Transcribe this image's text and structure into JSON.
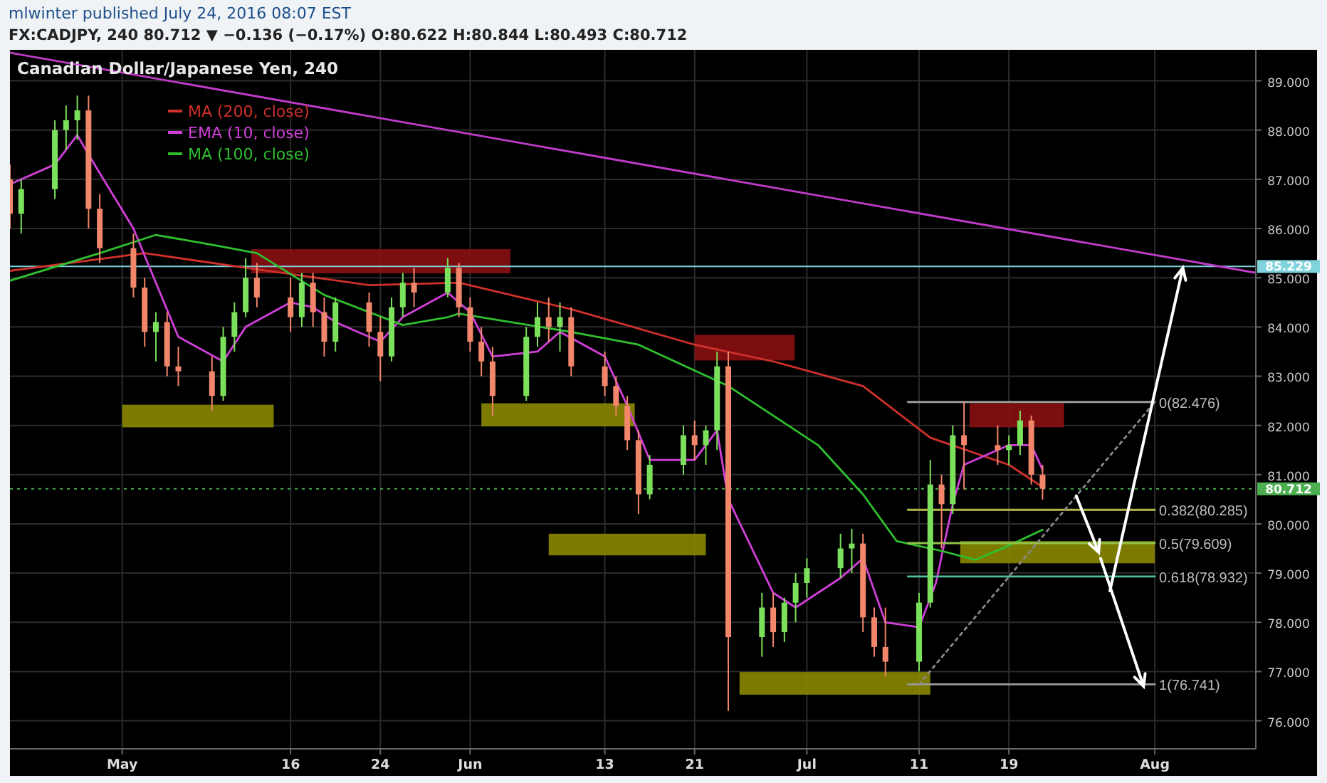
{
  "chart_data": {
    "type": "candlestick",
    "title": "Canadian Dollar/Japanese Yen, 240",
    "annotations": [
      "mlwinter published July 24, 2016 08:07 EST",
      "FX:CADJPY, 240  80.712 ▼ −0.136 (−0.17%)  O:80.622  H:80.844  L:80.493  C:80.712",
      {
        "text": "0(82.476)",
        "x": "2016-08-01",
        "y": 82.476
      },
      {
        "text": "0.382(80.285)",
        "x": "2016-08-01",
        "y": 80.285
      },
      {
        "text": "0.5(79.609)",
        "x": "2016-08-01",
        "y": 79.609
      },
      {
        "text": "0.618(78.932)",
        "x": "2016-08-01",
        "y": 78.932
      },
      {
        "text": "1(76.741)",
        "x": "2016-08-01",
        "y": 76.741
      }
    ],
    "x": [
      "2016-04-21",
      "2016-04-22",
      "2016-04-25",
      "2016-04-26",
      "2016-04-27",
      "2016-04-28",
      "2016-04-29",
      "2016-05-02",
      "2016-05-03",
      "2016-05-04",
      "2016-05-05",
      "2016-05-06",
      "2016-05-09",
      "2016-05-10",
      "2016-05-11",
      "2016-05-12",
      "2016-05-13",
      "2016-05-16",
      "2016-05-17",
      "2016-05-18",
      "2016-05-19",
      "2016-05-20",
      "2016-05-23",
      "2016-05-24",
      "2016-05-25",
      "2016-05-26",
      "2016-05-27",
      "2016-05-30",
      "2016-05-31",
      "2016-06-01",
      "2016-06-02",
      "2016-06-03",
      "2016-06-06",
      "2016-06-07",
      "2016-06-08",
      "2016-06-09",
      "2016-06-10",
      "2016-06-13",
      "2016-06-14",
      "2016-06-15",
      "2016-06-16",
      "2016-06-17",
      "2016-06-20",
      "2016-06-21",
      "2016-06-22",
      "2016-06-23",
      "2016-06-24",
      "2016-06-27",
      "2016-06-28",
      "2016-06-29",
      "2016-06-30",
      "2016-07-01",
      "2016-07-04",
      "2016-07-05",
      "2016-07-06",
      "2016-07-07",
      "2016-07-08",
      "2016-07-11",
      "2016-07-12",
      "2016-07-13",
      "2016-07-14",
      "2016-07-15",
      "2016-07-18",
      "2016-07-19",
      "2016-07-20",
      "2016-07-21",
      "2016-07-22"
    ],
    "ohlc": [
      [
        87.0,
        87.3,
        86.0,
        86.3
      ],
      [
        86.3,
        87.0,
        85.9,
        86.8
      ],
      [
        86.8,
        88.2,
        86.6,
        88.0
      ],
      [
        88.0,
        88.5,
        87.6,
        88.2
      ],
      [
        88.2,
        88.7,
        87.8,
        88.4
      ],
      [
        88.4,
        88.7,
        86.0,
        86.4
      ],
      [
        86.4,
        86.7,
        85.3,
        85.6
      ],
      [
        85.6,
        85.9,
        84.6,
        84.8
      ],
      [
        84.8,
        85.0,
        83.6,
        83.9
      ],
      [
        83.9,
        84.3,
        83.3,
        84.1
      ],
      [
        84.1,
        84.3,
        83.0,
        83.2
      ],
      [
        83.2,
        83.6,
        82.8,
        83.1
      ],
      [
        83.1,
        83.4,
        82.3,
        82.6
      ],
      [
        82.6,
        84.0,
        82.5,
        83.8
      ],
      [
        83.8,
        84.5,
        83.5,
        84.3
      ],
      [
        84.3,
        85.4,
        84.2,
        85.0
      ],
      [
        85.0,
        85.3,
        84.4,
        84.6
      ],
      [
        84.6,
        85.0,
        83.9,
        84.2
      ],
      [
        84.2,
        85.1,
        84.0,
        84.9
      ],
      [
        84.9,
        85.1,
        84.0,
        84.3
      ],
      [
        84.3,
        84.6,
        83.4,
        83.7
      ],
      [
        83.7,
        84.6,
        83.5,
        84.5
      ],
      [
        84.5,
        84.7,
        83.6,
        83.9
      ],
      [
        83.9,
        84.2,
        82.9,
        83.4
      ],
      [
        83.4,
        84.6,
        83.3,
        84.4
      ],
      [
        84.4,
        85.1,
        84.2,
        84.9
      ],
      [
        84.9,
        85.2,
        84.4,
        84.7
      ],
      [
        84.7,
        85.4,
        84.6,
        85.2
      ],
      [
        85.2,
        85.3,
        84.2,
        84.4
      ],
      [
        84.4,
        84.6,
        83.5,
        83.7
      ],
      [
        83.7,
        84.0,
        83.0,
        83.3
      ],
      [
        83.3,
        83.6,
        82.2,
        82.6
      ],
      [
        82.6,
        84.0,
        82.5,
        83.8
      ],
      [
        83.8,
        84.5,
        83.6,
        84.2
      ],
      [
        84.2,
        84.6,
        83.7,
        84.0
      ],
      [
        84.0,
        84.5,
        83.5,
        84.2
      ],
      [
        84.2,
        84.4,
        83.0,
        83.2
      ],
      [
        83.2,
        83.5,
        82.6,
        82.8
      ],
      [
        82.8,
        83.0,
        82.2,
        82.4
      ],
      [
        82.4,
        82.6,
        81.5,
        81.7
      ],
      [
        81.7,
        81.9,
        80.2,
        80.6
      ],
      [
        80.6,
        81.4,
        80.5,
        81.2
      ],
      [
        81.2,
        82.0,
        81.0,
        81.8
      ],
      [
        81.8,
        82.1,
        81.3,
        81.6
      ],
      [
        81.6,
        82.0,
        81.2,
        81.9
      ],
      [
        81.9,
        83.5,
        81.5,
        83.2
      ],
      [
        83.2,
        83.5,
        76.2,
        77.7
      ],
      [
        77.7,
        78.6,
        77.3,
        78.3
      ],
      [
        78.3,
        78.6,
        77.5,
        77.8
      ],
      [
        77.8,
        78.5,
        77.6,
        78.4
      ],
      [
        78.4,
        79.0,
        78.0,
        78.8
      ],
      [
        78.8,
        79.3,
        78.5,
        79.1
      ],
      [
        79.1,
        79.8,
        78.9,
        79.5
      ],
      [
        79.5,
        79.9,
        79.0,
        79.6
      ],
      [
        79.6,
        79.8,
        77.8,
        78.1
      ],
      [
        78.1,
        78.3,
        77.3,
        77.5
      ],
      [
        77.5,
        78.3,
        76.9,
        77.2
      ],
      [
        77.2,
        78.6,
        77.0,
        78.4
      ],
      [
        78.4,
        81.3,
        78.3,
        80.8
      ],
      [
        80.8,
        81.0,
        79.5,
        80.4
      ],
      [
        80.4,
        82.0,
        80.2,
        81.8
      ],
      [
        81.8,
        82.48,
        80.7,
        81.6
      ],
      [
        81.6,
        82.0,
        81.2,
        81.5
      ],
      [
        81.5,
        81.8,
        81.2,
        81.6
      ],
      [
        81.6,
        82.3,
        81.4,
        82.1
      ],
      [
        82.1,
        82.2,
        80.8,
        81.0
      ],
      [
        81.0,
        81.2,
        80.493,
        80.712
      ]
    ],
    "colors": [
      "#f2866a",
      "#7be05b",
      "#7be05b",
      "#7be05b",
      "#7be05b",
      "#f2866a",
      "#f2866a",
      "#f2866a",
      "#f2866a",
      "#7be05b",
      "#f2866a",
      "#f2866a",
      "#f2866a",
      "#7be05b",
      "#7be05b",
      "#7be05b",
      "#f2866a",
      "#f2866a",
      "#7be05b",
      "#f2866a",
      "#f2866a",
      "#7be05b",
      "#f2866a",
      "#f2866a",
      "#7be05b",
      "#7be05b",
      "#f2866a",
      "#7be05b",
      "#f2866a",
      "#f2866a",
      "#f2866a",
      "#f2866a",
      "#7be05b",
      "#7be05b",
      "#f2866a",
      "#7be05b",
      "#f2866a",
      "#f2866a",
      "#f2866a",
      "#f2866a",
      "#f2866a",
      "#7be05b",
      "#7be05b",
      "#f2866a",
      "#7be05b",
      "#7be05b",
      "#f2866a",
      "#7be05b",
      "#f2866a",
      "#7be05b",
      "#7be05b",
      "#7be05b",
      "#7be05b",
      "#7be05b",
      "#f2866a",
      "#f2866a",
      "#f2866a",
      "#7be05b",
      "#7be05b",
      "#f2866a",
      "#7be05b",
      "#f2866a",
      "#f2866a",
      "#7be05b",
      "#7be05b",
      "#f2866a",
      "#f2866a"
    ],
    "series": [
      {
        "type": "line",
        "color": "#c03cc8",
        "x": [
          "2016-04-21",
          "2016-08-10"
        ],
        "values": [
          89.57,
          85.1
        ]
      },
      {
        "type": "line",
        "name": "MA (200, close)",
        "color": "#d0302a",
        "x": [
          "2016-04-21",
          "2016-05-03",
          "2016-05-13",
          "2016-05-23",
          "2016-05-31",
          "2016-06-10",
          "2016-06-21",
          "2016-06-28",
          "2016-07-06",
          "2016-07-12",
          "2016-07-19",
          "2016-07-22"
        ],
        "values": [
          85.14,
          85.5,
          85.17,
          84.85,
          84.9,
          84.36,
          83.64,
          83.3,
          82.8,
          81.75,
          81.2,
          80.75
        ]
      },
      {
        "type": "line",
        "name": "EMA (10, close)",
        "color": "#d040d8",
        "x": [
          "2016-04-21",
          "2016-04-25",
          "2016-04-27",
          "2016-04-28",
          "2016-05-02",
          "2016-05-04",
          "2016-05-06",
          "2016-05-10",
          "2016-05-12",
          "2016-05-16",
          "2016-05-18",
          "2016-05-20",
          "2016-05-24",
          "2016-05-26",
          "2016-05-30",
          "2016-06-01",
          "2016-06-03",
          "2016-06-07",
          "2016-06-09",
          "2016-06-13",
          "2016-06-15",
          "2016-06-17",
          "2016-06-21",
          "2016-06-23",
          "2016-06-24",
          "2016-06-28",
          "2016-06-30",
          "2016-07-04",
          "2016-07-06",
          "2016-07-08",
          "2016-07-11",
          "2016-07-12T12:00",
          "2016-07-14",
          "2016-07-15",
          "2016-07-19",
          "2016-07-21",
          "2016-07-22"
        ],
        "values": [
          86.9,
          87.3,
          87.9,
          87.5,
          86.0,
          84.9,
          83.8,
          83.3,
          84.0,
          84.5,
          84.4,
          84.1,
          83.7,
          84.2,
          84.7,
          84.3,
          83.4,
          83.5,
          83.9,
          83.4,
          82.4,
          81.3,
          81.3,
          81.9,
          80.5,
          78.6,
          78.3,
          78.9,
          79.3,
          78.0,
          77.9,
          78.8,
          80.4,
          81.2,
          81.6,
          81.6,
          81.1
        ]
      },
      {
        "type": "line",
        "name": "MA (100, close)",
        "color": "#2fbf2f",
        "x": [
          "2016-04-21",
          "2016-04-29",
          "2016-05-04",
          "2016-05-09",
          "2016-05-13",
          "2016-05-19",
          "2016-05-26",
          "2016-05-30",
          "2016-05-31",
          "2016-06-10",
          "2016-06-16",
          "2016-06-24",
          "2016-07-02",
          "2016-07-06",
          "2016-07-09",
          "2016-07-13",
          "2016-07-16",
          "2016-07-19",
          "2016-07-22"
        ],
        "values": [
          84.94,
          85.5,
          85.87,
          85.67,
          85.5,
          84.65,
          84.04,
          84.2,
          84.27,
          83.9,
          83.64,
          82.8,
          81.6,
          80.6,
          79.65,
          79.45,
          79.27,
          79.56,
          79.88
        ]
      },
      {
        "type": "line",
        "color": "#9a9a9a",
        "x": [
          "2016-07-10",
          "2016-08-01"
        ],
        "values": [
          82.476,
          82.476
        ]
      },
      {
        "type": "line",
        "color": "#b5b84a",
        "x": [
          "2016-07-10",
          "2016-08-01"
        ],
        "values": [
          80.285,
          80.285
        ]
      },
      {
        "type": "line",
        "color": "#8fc44a",
        "x": [
          "2016-07-10",
          "2016-08-01"
        ],
        "values": [
          79.609,
          79.609
        ]
      },
      {
        "type": "line",
        "color": "#4fbf9f",
        "x": [
          "2016-07-10",
          "2016-08-01"
        ],
        "values": [
          78.932,
          78.932
        ]
      },
      {
        "type": "line",
        "color": "#9a9a9a",
        "x": [
          "2016-07-10",
          "2016-08-01"
        ],
        "values": [
          76.741,
          76.741
        ]
      },
      {
        "type": "line",
        "color": "#8a8a8a",
        "line_style": "dotted",
        "x": [
          "2016-07-11",
          "2016-08-01"
        ],
        "values": [
          76.741,
          82.476
        ]
      }
    ],
    "xlim": [
      "2016-04-21",
      "2016-08-10"
    ],
    "xticks": [
      {
        "value": "2016-05-01",
        "label": "May"
      },
      {
        "value": "2016-05-16",
        "label": "16"
      },
      {
        "value": "2016-05-24",
        "label": "24"
      },
      {
        "value": "2016-06-01",
        "label": "Jun"
      },
      {
        "value": "2016-06-13",
        "label": "13"
      },
      {
        "value": "2016-06-21",
        "label": "21"
      },
      {
        "value": "2016-07-01",
        "label": "Jul"
      },
      {
        "value": "2016-07-11",
        "label": "11"
      },
      {
        "value": "2016-07-19",
        "label": "19"
      },
      {
        "value": "2016-08-01",
        "label": "Aug"
      }
    ],
    "ylim": [
      75.43,
      89.63
    ],
    "yticks": [
      {
        "value": 76,
        "label": "76.000"
      },
      {
        "value": 77,
        "label": "77.000"
      },
      {
        "value": 78,
        "label": "78.000"
      },
      {
        "value": 79,
        "label": "79.000"
      },
      {
        "value": 80,
        "label": "80.000"
      },
      {
        "value": 81,
        "label": "81.000"
      },
      {
        "value": 82,
        "label": "82.000"
      },
      {
        "value": 83,
        "label": "83.000"
      },
      {
        "value": 84,
        "label": "84.000"
      },
      {
        "value": 85,
        "label": "85.000"
      },
      {
        "value": 86,
        "label": "86.000"
      },
      {
        "value": 87,
        "label": "87.000"
      },
      {
        "value": 88,
        "label": "88.000"
      },
      {
        "value": 89,
        "label": "89.000"
      }
    ],
    "grid": true,
    "legend": "top left",
    "ref_lines": [
      {
        "axis": "y",
        "value": 85.229,
        "label": "85.229",
        "color": "#7fd3dc"
      },
      {
        "axis": "y",
        "value": 80.712,
        "label": "80.712",
        "color": "#4caf50",
        "line_style": "dotted"
      }
    ]
  }
}
